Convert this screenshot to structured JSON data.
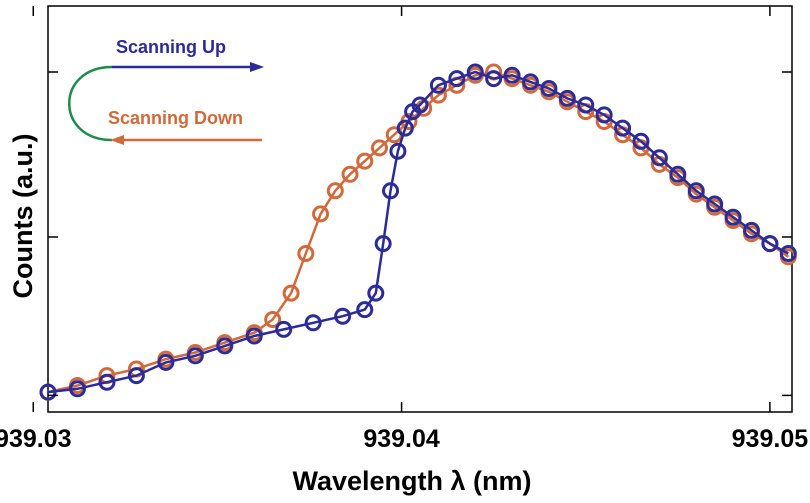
{
  "chart_data": {
    "type": "scatter",
    "xlabel": "Wavelength λ (nm)",
    "ylabel": "Counts (a.u.)",
    "xlim": [
      939.0304,
      939.0506
    ],
    "ylim": [
      0,
      1
    ],
    "x_ticks": [
      "939.03",
      "939.04",
      "939.05"
    ],
    "y_ticks_labeled": false,
    "grid": false,
    "legend_position": "top-left",
    "series": [
      {
        "name": "Scanning Up",
        "color": "#2b2b9a",
        "x": [
          939.0304,
          939.0312,
          939.032,
          939.0328,
          939.0336,
          939.0344,
          939.0352,
          939.036,
          939.0368,
          939.0376,
          939.0384,
          939.039,
          939.0393,
          939.0395,
          939.0397,
          939.0399,
          939.0401,
          939.0403,
          939.0405,
          939.041,
          939.0415,
          939.042,
          939.0425,
          939.043,
          939.0435,
          939.044,
          939.0445,
          939.045,
          939.0455,
          939.046,
          939.0465,
          939.047,
          939.0475,
          939.048,
          939.0485,
          939.049,
          939.0495,
          939.05,
          939.0505
        ],
        "y": [
          0.03,
          0.04,
          0.06,
          0.08,
          0.12,
          0.14,
          0.17,
          0.2,
          0.22,
          0.24,
          0.26,
          0.28,
          0.33,
          0.48,
          0.64,
          0.76,
          0.83,
          0.88,
          0.9,
          0.96,
          0.98,
          1.0,
          0.98,
          0.99,
          0.97,
          0.95,
          0.92,
          0.9,
          0.87,
          0.83,
          0.79,
          0.74,
          0.69,
          0.64,
          0.6,
          0.56,
          0.52,
          0.48,
          0.45
        ]
      },
      {
        "name": "Scanning Down",
        "color": "#d2693a",
        "x": [
          939.0304,
          939.0312,
          939.032,
          939.0328,
          939.0336,
          939.0344,
          939.0352,
          939.036,
          939.0365,
          939.037,
          939.0374,
          939.0378,
          939.0382,
          939.0386,
          939.039,
          939.0394,
          939.0398,
          939.0402,
          939.0406,
          939.041,
          939.0415,
          939.042,
          939.0425,
          939.043,
          939.0435,
          939.044,
          939.0445,
          939.045,
          939.0455,
          939.046,
          939.0465,
          939.047,
          939.0475,
          939.048,
          939.0485,
          939.049,
          939.0495,
          939.05,
          939.0505
        ],
        "y": [
          0.03,
          0.05,
          0.08,
          0.1,
          0.13,
          0.15,
          0.18,
          0.21,
          0.25,
          0.33,
          0.45,
          0.57,
          0.64,
          0.69,
          0.73,
          0.77,
          0.81,
          0.85,
          0.89,
          0.93,
          0.96,
          0.99,
          1.0,
          0.98,
          0.96,
          0.94,
          0.91,
          0.88,
          0.85,
          0.81,
          0.77,
          0.72,
          0.68,
          0.63,
          0.59,
          0.55,
          0.51,
          0.48,
          0.44
        ]
      }
    ]
  }
}
